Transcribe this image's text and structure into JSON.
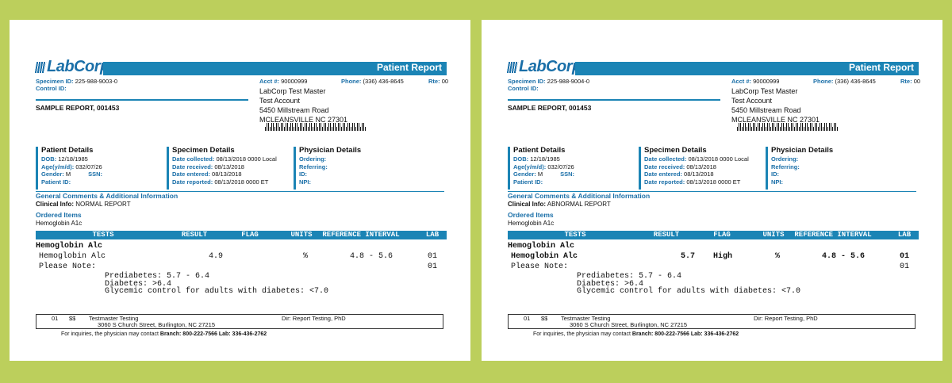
{
  "reports": [
    {
      "logo": "LabCorp",
      "title": "Patient Report",
      "specimen_id_label": "Specimen ID:",
      "specimen_id": "225-988-9003-0",
      "control_id_label": "Control ID:",
      "patient_name": "SAMPLE REPORT, 001453",
      "acct_label": "Acct #:",
      "acct": "90000999",
      "phone_label": "Phone:",
      "phone": "(336) 436-8645",
      "rte_label": "Rte:",
      "rte": "00",
      "address": [
        "LabCorp Test Master",
        "Test Account",
        "5450 Millstream Road",
        "MCLEANSVILLE NC 27301"
      ],
      "sections": [
        {
          "title": "Patient Details",
          "fields": [
            {
              "label": "DOB:",
              "value": "12/18/1985"
            },
            {
              "label": "Age(y/m/d):",
              "value": "032/07/26"
            },
            {
              "label": "Gender:",
              "value": "M",
              "label2": "SSN:"
            },
            {
              "label": "Patient ID:"
            }
          ]
        },
        {
          "title": "Specimen Details",
          "fields": [
            {
              "label": "Date collected:",
              "value": "08/13/2018 0000 Local"
            },
            {
              "label": "Date received:",
              "value": "08/13/2018"
            },
            {
              "label": "Date entered:",
              "value": "08/13/2018"
            },
            {
              "label": "Date reported:",
              "value": "08/13/2018 0000 ET"
            }
          ]
        },
        {
          "title": "Physician Details",
          "fields": [
            {
              "label": "Ordering:"
            },
            {
              "label": "Referring:"
            },
            {
              "label": "ID:"
            },
            {
              "label": "NPI:"
            }
          ]
        }
      ],
      "comments_title": "General Comments & Additional Information",
      "clinical_label": "Clinical Info:",
      "clinical": "NORMAL REPORT",
      "ordered_title": "Ordered Items",
      "ordered": "Hemoglobin A1c",
      "table": {
        "headers": [
          "TESTS",
          "RESULT",
          "FLAG",
          "UNITS",
          "REFERENCE INTERVAL",
          "LAB"
        ],
        "group": "Hemoglobin Alc",
        "rows": [
          {
            "test": "Hemoglobin Alc",
            "result": "4.9",
            "units": "%",
            "reference": "4.8 - 5.6",
            "lab": "01"
          },
          {
            "test": "Please Note:",
            "lab": "01"
          }
        ],
        "notes": [
          "Prediabetes: 5.7 - 6.4",
          "Diabetes: >6.4",
          "Glycemic control for adults with diabetes: <7.0"
        ]
      },
      "footer": {
        "code": "01",
        "symbol": "$$",
        "lab_name": "Testmaster Testing",
        "lab_address": "3060 S Church Street, Burlington, NC 27215",
        "director": "Dir: Report Testing, PhD",
        "inquiry": "For inquiries, the physician may contact",
        "contact": "Branch: 800-222-7566 Lab: 336-436-2762"
      }
    },
    {
      "logo": "LabCorp",
      "title": "Patient Report",
      "specimen_id_label": "Specimen ID:",
      "specimen_id": "225-988-9004-0",
      "control_id_label": "Control ID:",
      "patient_name": "SAMPLE REPORT, 001453",
      "acct_label": "Acct #:",
      "acct": "90000999",
      "phone_label": "Phone:",
      "phone": "(336) 436-8645",
      "rte_label": "Rte:",
      "rte": "00",
      "address": [
        "LabCorp Test Master",
        "Test Account",
        "5450 Millstream Road",
        "MCLEANSVILLE NC 27301"
      ],
      "sections": [
        {
          "title": "Patient Details",
          "fields": [
            {
              "label": "DOB:",
              "value": "12/18/1985"
            },
            {
              "label": "Age(y/m/d):",
              "value": "032/07/26"
            },
            {
              "label": "Gender:",
              "value": "M",
              "label2": "SSN:"
            },
            {
              "label": "Patient ID:"
            }
          ]
        },
        {
          "title": "Specimen Details",
          "fields": [
            {
              "label": "Date collected:",
              "value": "08/13/2018 0000 Local"
            },
            {
              "label": "Date received:",
              "value": "08/13/2018"
            },
            {
              "label": "Date entered:",
              "value": "08/13/2018"
            },
            {
              "label": "Date reported:",
              "value": "08/13/2018 0000 ET"
            }
          ]
        },
        {
          "title": "Physician Details",
          "fields": [
            {
              "label": "Ordering:"
            },
            {
              "label": "Referring:"
            },
            {
              "label": "ID:"
            },
            {
              "label": "NPI:"
            }
          ]
        }
      ],
      "comments_title": "General Comments & Additional Information",
      "clinical_label": "Clinical Info:",
      "clinical": "ABNORMAL REPORT",
      "ordered_title": "Ordered Items",
      "ordered": "Hemoglobin A1c",
      "table": {
        "headers": [
          "TESTS",
          "RESULT",
          "FLAG",
          "UNITS",
          "REFERENCE INTERVAL",
          "LAB"
        ],
        "group": "Hemoglobin Alc",
        "rows": [
          {
            "test": "Hemoglobin Alc",
            "result": "5.7",
            "flag": "High",
            "units": "%",
            "reference": "4.8 - 5.6",
            "lab": "01"
          },
          {
            "test": "Please Note:",
            "lab": "01"
          }
        ],
        "notes": [
          "Prediabetes: 5.7 - 6.4",
          "Diabetes: >6.4",
          "Glycemic control for adults with diabetes: <7.0"
        ]
      },
      "footer": {
        "code": "01",
        "symbol": "$$",
        "lab_name": "Testmaster Testing",
        "lab_address": "3060 S Church Street, Burlington, NC 27215",
        "director": "Dir: Report Testing, PhD",
        "inquiry": "For inquiries, the physician may contact",
        "contact": "Branch: 800-222-7566 Lab: 336-436-2762"
      }
    }
  ]
}
